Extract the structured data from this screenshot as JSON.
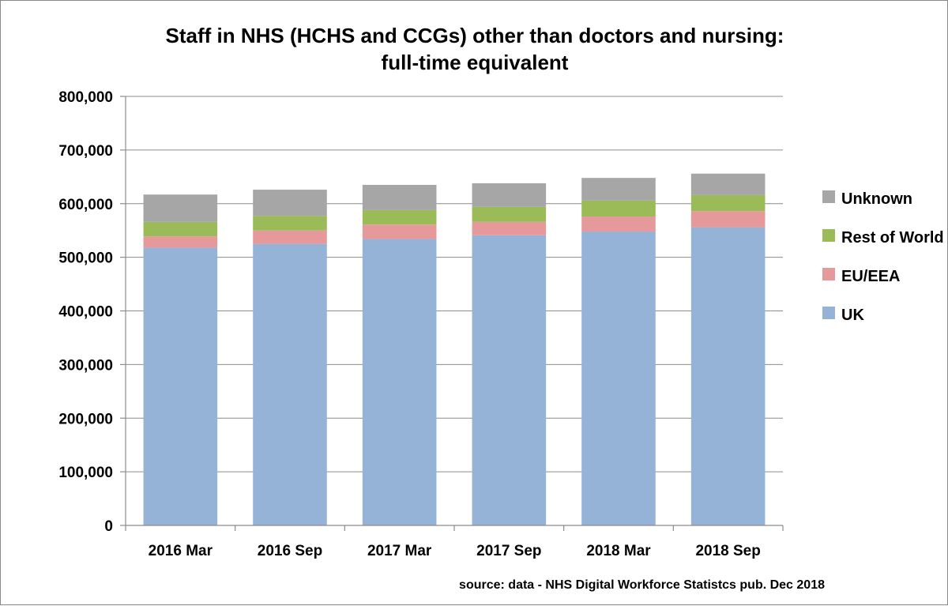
{
  "chart_data": {
    "type": "bar",
    "stacked": true,
    "title_lines": [
      "Staff in NHS (HCHS and CCGs) other than doctors and nursing:",
      "full-time equivalent"
    ],
    "categories": [
      "2016 Mar",
      "2016 Sep",
      "2017 Mar",
      "2017 Sep",
      "2018 Mar",
      "2018 Sep"
    ],
    "series": [
      {
        "name": "UK",
        "color": "#95b3d7",
        "values": [
          518000,
          525000,
          534000,
          541000,
          548000,
          556000
        ]
      },
      {
        "name": "EU/EEA",
        "color": "#e6999a",
        "values": [
          21000,
          25000,
          27000,
          25000,
          28000,
          30000
        ]
      },
      {
        "name": "Rest of World",
        "color": "#9bbb59",
        "values": [
          27000,
          27000,
          27000,
          28000,
          30000,
          30000
        ]
      },
      {
        "name": "Unknown",
        "color": "#a6a6a6",
        "values": [
          51000,
          49000,
          47000,
          44000,
          42000,
          40000
        ]
      }
    ],
    "ylim": [
      0,
      800000
    ],
    "yticks": [
      "0",
      "100,000",
      "200,000",
      "300,000",
      "400,000",
      "500,000",
      "600,000",
      "700,000",
      "800,000"
    ],
    "legend_order": [
      "Unknown",
      "Rest of World",
      "EU/EEA",
      "UK"
    ],
    "legend_position": "right",
    "grid": true,
    "source": "source: data - NHS Digital Workforce Statistcs pub. Dec 2018"
  }
}
